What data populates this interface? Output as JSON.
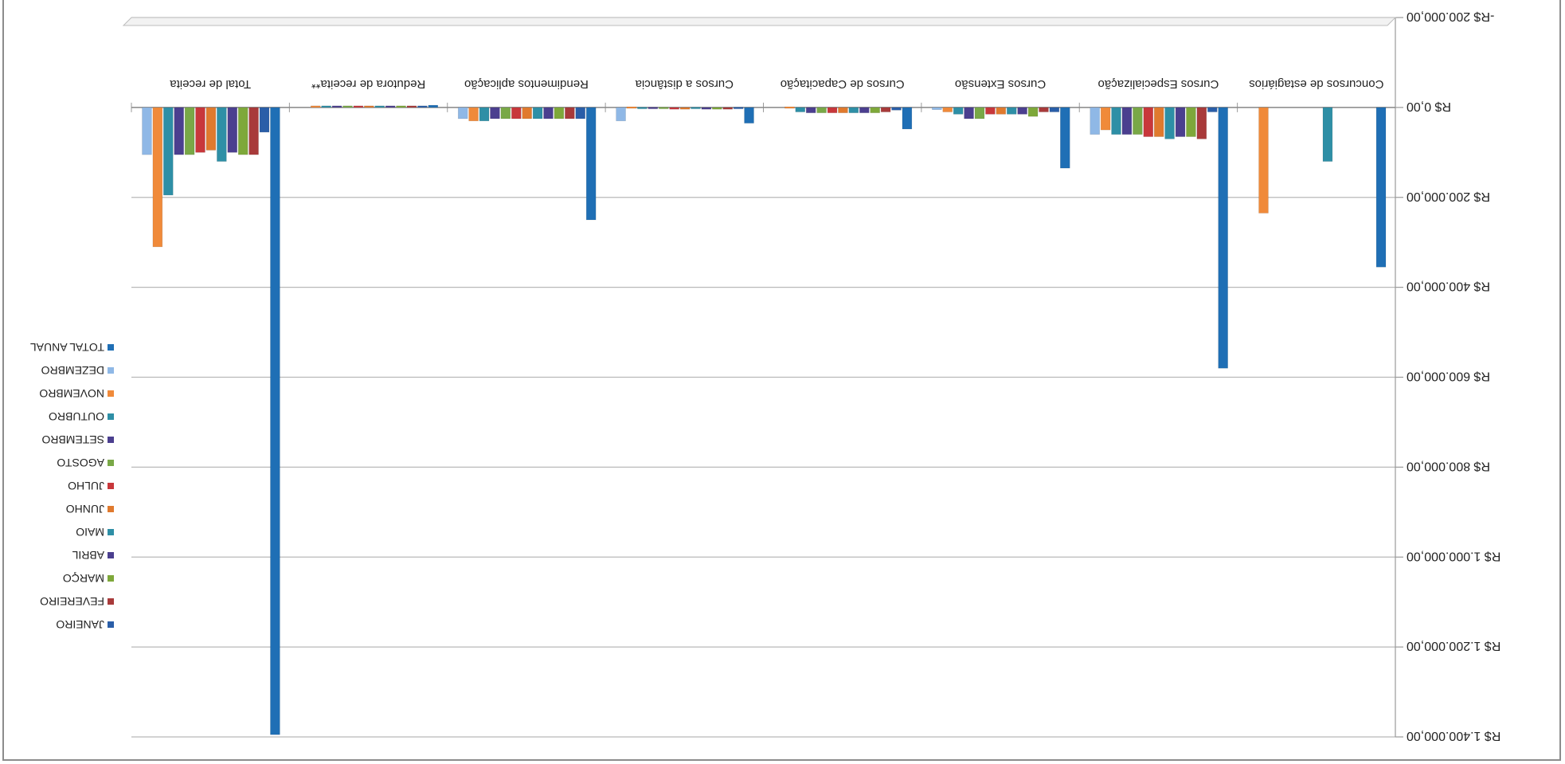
{
  "chart_data": {
    "type": "bar",
    "orientation": "upside-down (rotated 180°)",
    "title": "",
    "xlabel": "",
    "ylabel": "",
    "ylim": [
      -200000,
      1400000
    ],
    "yticks": [
      -200000,
      0,
      200000,
      400000,
      600000,
      800000,
      1000000,
      1200000,
      1400000
    ],
    "ytick_labels": [
      "-R$ 200.000,00",
      "R$ 0,00",
      "R$ 200.000,00",
      "R$ 400.000,00",
      "R$ 600.000,00",
      "R$ 800.000,00",
      "R$ 1.000.000,00",
      "R$ 1.200.000,00",
      "R$ 1.400.000,00"
    ],
    "grid": true,
    "legend_position": "right",
    "categories": [
      "Concursos de estagiários",
      "Cursos Especialização",
      "Cursos Extensão",
      "Cursos de Capacitação",
      "Cursos a distância",
      "Rendimentos aplicação",
      "Redutora de receita**",
      "Total de receita"
    ],
    "series": [
      {
        "name": "TOTAL ANUAL",
        "color": "#1f6fb5",
        "values": [
          355000,
          580000,
          135000,
          48000,
          35000,
          250000,
          -5000,
          1395000
        ]
      },
      {
        "name": "JANEIRO",
        "color": "#2a5ea8",
        "values": [
          0,
          10000,
          10000,
          6000,
          3000,
          25000,
          -2000,
          55000
        ]
      },
      {
        "name": "FEVEREIRO",
        "color": "#a83a3a",
        "values": [
          0,
          70000,
          10000,
          10000,
          4000,
          25000,
          -2000,
          105000
        ]
      },
      {
        "name": "MARÇO",
        "color": "#7ea83a",
        "values": [
          0,
          65000,
          20000,
          12000,
          4000,
          25000,
          -2000,
          105000
        ]
      },
      {
        "name": "ABRIL",
        "color": "#4b3f8f",
        "values": [
          0,
          65000,
          15000,
          12000,
          4000,
          25000,
          -2000,
          100000
        ]
      },
      {
        "name": "MAIO",
        "color": "#2e8fa6",
        "values": [
          120000,
          70000,
          15000,
          12000,
          3000,
          25000,
          -2000,
          120000
        ]
      },
      {
        "name": "JUNHO",
        "color": "#e07a2e",
        "values": [
          0,
          65000,
          15000,
          12000,
          4000,
          25000,
          -2000,
          95000
        ]
      },
      {
        "name": "JULHO",
        "color": "#c8373b",
        "values": [
          0,
          65000,
          15000,
          12000,
          4000,
          25000,
          -2000,
          100000
        ]
      },
      {
        "name": "AGOSTO",
        "color": "#79a847",
        "values": [
          0,
          60000,
          25000,
          12000,
          3000,
          25000,
          -2000,
          105000
        ]
      },
      {
        "name": "SETEMBRO",
        "color": "#4b3f8f",
        "values": [
          0,
          60000,
          25000,
          12000,
          3000,
          25000,
          -2000,
          105000
        ]
      },
      {
        "name": "OUTUBRO",
        "color": "#2e8fa6",
        "values": [
          0,
          60000,
          15000,
          10000,
          3000,
          30000,
          -2000,
          195000
        ]
      },
      {
        "name": "NOVEMBRO",
        "color": "#f08a3a",
        "values": [
          235000,
          50000,
          10000,
          2000,
          2000,
          30000,
          -2000,
          310000
        ]
      },
      {
        "name": "DEZEMBRO",
        "color": "#8fb8e6",
        "values": [
          0,
          60000,
          5000,
          0,
          30000,
          25000,
          0,
          105000
        ]
      }
    ]
  }
}
